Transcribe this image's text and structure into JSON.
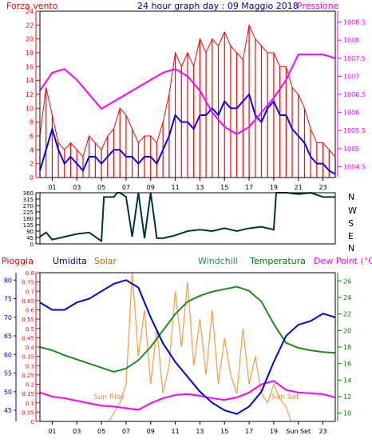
{
  "header": {
    "left_label": "Forza vento",
    "title": "24 hour graph day : 09 Maggio 2018",
    "right_label": "Pressione"
  },
  "wind_dir_labels": [
    "N",
    "W",
    "S",
    "E",
    "N"
  ],
  "bottom_header": {
    "rain": "Pioggia",
    "humidity": "Umidita",
    "solar": "Solar",
    "windchill": "Windchill",
    "temperature": "Temperatura",
    "dewpoint": "Dew Point (°C)"
  },
  "annotations": {
    "sunrise": "Sun Rise",
    "sunset": "Sun Set",
    "sunset_axis": "Sun Set"
  },
  "colors": {
    "wind": "#ff0000",
    "avgwind": "#0000ff",
    "pressure": "#ff00ff",
    "direction": "#003333",
    "humidity": "#0000cc",
    "rain": "#ff0000",
    "solar": "#ff9944",
    "temperature": "#228822",
    "dewpoint": "#ff00ff",
    "frame": "#000000"
  },
  "chart_data": [
    {
      "type": "line",
      "title": "24 hour graph day : 09 Maggio 2018",
      "x_ticks": [
        "01",
        "03",
        "05",
        "07",
        "09",
        "11",
        "13",
        "15",
        "17",
        "19",
        "21",
        "23"
      ],
      "y_left_ticks": [
        "0",
        "2",
        "4",
        "6",
        "8",
        "10",
        "12",
        "14",
        "16",
        "18",
        "20",
        "22",
        "24"
      ],
      "y_left_label": "Forza vento",
      "ylim_left": [
        0,
        24
      ],
      "y_right_ticks": [
        "1004.5",
        "1005",
        "1005.5",
        "1006",
        "1006.5",
        "1007",
        "1007.5",
        "1008",
        "1008.5"
      ],
      "y_right_label": "Pressione",
      "ylim_right": [
        1004.2,
        1008.8
      ],
      "series": [
        {
          "name": "Forza vento",
          "axis": "left",
          "style": "gust",
          "x": [
            0,
            0.5,
            1,
            1.5,
            2,
            2.5,
            3,
            3.5,
            4,
            4.5,
            5,
            5.5,
            6,
            6.5,
            7,
            7.5,
            8,
            8.5,
            9,
            9.5,
            10,
            10.5,
            11,
            11.5,
            12,
            12.5,
            13,
            13.5,
            14,
            14.5,
            15,
            15.5,
            16,
            16.5,
            17,
            17.5,
            18,
            18.5,
            19,
            19.5,
            20,
            20.5,
            21,
            21.5,
            22,
            22.5,
            23,
            23.5,
            24
          ],
          "y": [
            6,
            13,
            9,
            5,
            4,
            5,
            4,
            3,
            6,
            5,
            4,
            6,
            7,
            10,
            9,
            7,
            5,
            6,
            6,
            5,
            8,
            12,
            18,
            16,
            18,
            16,
            20,
            18,
            20,
            19,
            21,
            19,
            18,
            17,
            22,
            20,
            19,
            18,
            18,
            16,
            16,
            13,
            12,
            10,
            7,
            5,
            5,
            4,
            3
          ]
        },
        {
          "name": "",
          "axis": "left",
          "style": "avg",
          "x": [
            0,
            0.5,
            1,
            1.5,
            2,
            2.5,
            3,
            3.5,
            4,
            4.5,
            5,
            5.5,
            6,
            6.5,
            7,
            7.5,
            8,
            8.5,
            9,
            9.5,
            10,
            10.5,
            11,
            11.5,
            12,
            12.5,
            13,
            13.5,
            14,
            14.5,
            15,
            15.5,
            16,
            16.5,
            17,
            17.5,
            18,
            18.5,
            19,
            19.5,
            20,
            20.5,
            21,
            21.5,
            22,
            22.5,
            23,
            23.5,
            24
          ],
          "y": [
            1,
            4,
            7,
            4,
            2,
            3,
            2,
            1,
            3,
            3,
            2,
            3,
            4,
            4,
            3,
            3,
            2,
            3,
            3,
            2,
            4,
            6,
            9,
            8,
            8,
            7,
            9,
            9,
            10,
            9,
            11,
            10,
            10,
            11,
            12,
            9,
            8,
            10,
            11,
            9,
            9,
            7,
            6,
            5,
            3,
            2,
            2,
            1,
            0.5
          ]
        },
        {
          "name": "Pressione",
          "axis": "right",
          "x": [
            0,
            1,
            2,
            3,
            4,
            5,
            6,
            7,
            8,
            9,
            10,
            11,
            12,
            13,
            14,
            15,
            16,
            17,
            18,
            19,
            20,
            21,
            22,
            23,
            24
          ],
          "y": [
            1006.6,
            1007.1,
            1007.2,
            1006.9,
            1006.5,
            1006.1,
            1006.3,
            1006.5,
            1006.7,
            1006.9,
            1007.1,
            1007.2,
            1007.0,
            1006.6,
            1006.0,
            1005.6,
            1005.4,
            1005.6,
            1006.0,
            1006.4,
            1006.9,
            1007.6,
            1007.6,
            1007.6,
            1007.5
          ]
        }
      ]
    },
    {
      "type": "line",
      "x_ticks": [
        "01",
        "03",
        "05",
        "07",
        "09",
        "11",
        "13",
        "15",
        "17",
        "19",
        "21",
        "23"
      ],
      "y_ticks": [
        "0",
        "45",
        "90",
        "135",
        "180",
        "225",
        "270",
        "315",
        "360"
      ],
      "ylim": [
        0,
        360
      ],
      "series": [
        {
          "name": "",
          "x": [
            0,
            0.5,
            1,
            2,
            3,
            4,
            5,
            5.2,
            6,
            6.3,
            6.5,
            7,
            7.5,
            8,
            8.5,
            9,
            9.5,
            10,
            10.5,
            11,
            12,
            13,
            14,
            15,
            16,
            17,
            18,
            19,
            19.2,
            20,
            21,
            22,
            23,
            24
          ],
          "y": [
            50,
            80,
            30,
            50,
            70,
            80,
            20,
            330,
            330,
            360,
            360,
            330,
            50,
            360,
            40,
            360,
            40,
            40,
            50,
            60,
            90,
            100,
            90,
            110,
            90,
            110,
            120,
            100,
            360,
            360,
            350,
            360,
            330,
            330
          ]
        }
      ]
    },
    {
      "type": "line",
      "x_ticks": [
        "01",
        "03",
        "05",
        "07",
        "09",
        "11",
        "13",
        "15",
        "17",
        "19",
        "Sun Set",
        "23"
      ],
      "y_left_ticks": [
        "45",
        "50",
        "55",
        "60",
        "65",
        "70",
        "75",
        "80"
      ],
      "y_left_label": "Umidita",
      "ylim_left": [
        42,
        82
      ],
      "y_rain_ticks": [
        "0",
        "0.05",
        "0.1",
        "0.15",
        "0.2",
        "0.25",
        "0.3",
        "0.35",
        "0.4",
        "0.45",
        "0.5",
        "0.55",
        "0.6",
        "0.65",
        "0.7",
        "0.75",
        "0.8"
      ],
      "y_rain_label": "Pioggia",
      "ylim_rain": [
        0,
        0.8
      ],
      "y_right_ticks": [
        "10",
        "12",
        "14",
        "16",
        "18",
        "20",
        "22",
        "24",
        "26"
      ],
      "ylim_right": [
        9,
        27
      ],
      "series": [
        {
          "name": "Umidita",
          "axis": "left",
          "x": [
            0,
            1,
            2,
            3,
            4,
            5,
            6,
            7,
            8,
            9,
            10,
            11,
            12,
            13,
            14,
            15,
            16,
            17,
            18,
            19,
            20,
            21,
            22,
            23,
            24
          ],
          "y": [
            74,
            72,
            72,
            74,
            75,
            77,
            79,
            80,
            78,
            70,
            63,
            58,
            54,
            50,
            47,
            45,
            44,
            46,
            50,
            58,
            65,
            68,
            69,
            71,
            70
          ]
        },
        {
          "name": "Solar",
          "axis": "rain",
          "style": "solar",
          "x": [
            5.6,
            6.5,
            7,
            7.5,
            8,
            8.5,
            9,
            9.5,
            10,
            10.5,
            11,
            11.5,
            12,
            12.5,
            13,
            13.5,
            14,
            14.5,
            15,
            15.5,
            16,
            16.5,
            17,
            17.5,
            18,
            18.5,
            19,
            19.5,
            20,
            20.4
          ],
          "y": [
            0,
            0.1,
            0.2,
            0.8,
            0.35,
            0.6,
            0.2,
            0.5,
            0.15,
            0.3,
            0.7,
            0.4,
            0.75,
            0.3,
            0.55,
            0.25,
            0.6,
            0.2,
            0.45,
            0.25,
            0.15,
            0.5,
            0.2,
            0.35,
            0.15,
            0.1,
            0.2,
            0.12,
            0.08,
            0
          ]
        },
        {
          "name": "Temperatura",
          "axis": "right",
          "x": [
            0,
            1,
            2,
            3,
            4,
            5,
            6,
            7,
            8,
            9,
            10,
            11,
            12,
            13,
            14,
            15,
            16,
            17,
            18,
            19,
            20,
            21,
            22,
            23,
            24
          ],
          "y": [
            18,
            17.6,
            17,
            16.5,
            16,
            15.5,
            15,
            15.4,
            16.4,
            18,
            20,
            22,
            23.5,
            24.2,
            24.7,
            25,
            25.3,
            24.8,
            23.5,
            20.8,
            18.5,
            17.9,
            17.6,
            17.4,
            17.3
          ]
        },
        {
          "name": "Dew Point (°C)",
          "axis": "right",
          "x": [
            0,
            1,
            2,
            3,
            4,
            5,
            6,
            7,
            8,
            9,
            10,
            11,
            12,
            13,
            14,
            15,
            16,
            17,
            18,
            19,
            20,
            21,
            22,
            23,
            24
          ],
          "y": [
            12.5,
            12,
            11.8,
            11.5,
            11.2,
            10.9,
            10.8,
            10.6,
            10.4,
            11.2,
            11.8,
            12.2,
            12.3,
            12.1,
            11.8,
            11.6,
            11.9,
            12.5,
            13.5,
            13.9,
            12.8,
            12.5,
            12.4,
            12.3,
            11.9
          ]
        }
      ]
    }
  ]
}
